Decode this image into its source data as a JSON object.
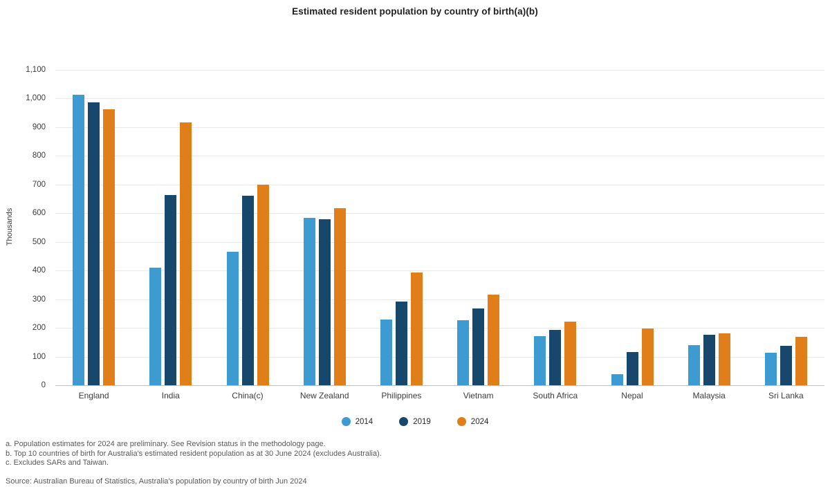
{
  "title": "Estimated resident population by country of birth(a)(b)",
  "chart_data": {
    "type": "bar",
    "title": "Estimated resident population by country of birth(a)(b)",
    "xlabel": "",
    "ylabel": "Thousands",
    "ylim": [
      0,
      1100
    ],
    "ytick_step": 100,
    "grid": true,
    "legend_position": "bottom",
    "categories": [
      "England",
      "India",
      "China(c)",
      "New Zealand",
      "Philippines",
      "Vietnam",
      "South Africa",
      "Nepal",
      "Malaysia",
      "Sri Lanka"
    ],
    "series": [
      {
        "name": "2014",
        "color": "#3D9BD1",
        "values": [
          1012,
          410,
          465,
          583,
          229,
          226,
          172,
          38,
          139,
          114
        ]
      },
      {
        "name": "2019",
        "color": "#17486B",
        "values": [
          987,
          663,
          660,
          580,
          293,
          267,
          193,
          116,
          177,
          137
        ]
      },
      {
        "name": "2024",
        "color": "#E07F1A",
        "values": [
          962,
          916,
          700,
          617,
          394,
          317,
          222,
          197,
          182,
          170
        ]
      }
    ]
  },
  "footnotes": [
    "a. Population estimates for 2024 are preliminary. See Revision status in the methodology page.",
    "b. Top 10 countries of birth for Australia's estimated resident population as at 30 June 2024 (excludes Australia).",
    "c. Excludes SARs and Taiwan."
  ],
  "source": "Source: Australian Bureau of Statistics, Australia's population by country of birth Jun 2024"
}
